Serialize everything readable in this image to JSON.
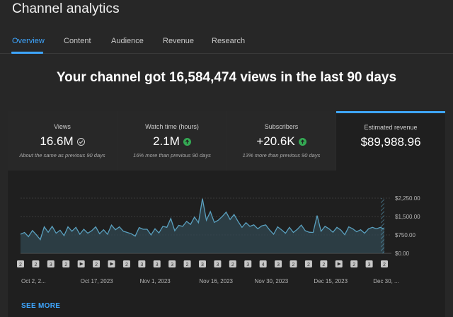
{
  "app": {
    "title": "Channel analytics"
  },
  "tabs": [
    {
      "label": "Overview",
      "active": true
    },
    {
      "label": "Content"
    },
    {
      "label": "Audience"
    },
    {
      "label": "Revenue"
    },
    {
      "label": "Research"
    }
  ],
  "headline": "Your channel got 16,584,474 views in the last 90 days",
  "metrics": [
    {
      "label": "Views",
      "value": "16.6M",
      "sub": "About the same as previous 90 days",
      "icon": "check-icon"
    },
    {
      "label": "Watch time (hours)",
      "value": "2.1M",
      "sub": "16% more than previous 90 days",
      "icon": "up-arrow-icon"
    },
    {
      "label": "Subscribers",
      "value": "+20.6K",
      "sub": "13% more than previous 90 days",
      "icon": "up-arrow-icon"
    },
    {
      "label": "Estimated revenue",
      "value": "$89,988.96",
      "sub": "",
      "icon": ""
    }
  ],
  "colors": {
    "accent": "#3ea6ff",
    "positive": "#34a853",
    "line": "#5aa0bf"
  },
  "chart_data": {
    "type": "area",
    "title": "",
    "xlabel": "",
    "ylabel": "",
    "ylim": [
      0,
      2250
    ],
    "yticks": [
      "$0.00",
      "$750.00",
      "$1,500.00",
      "$2,250.00"
    ],
    "xticks": [
      {
        "label": "Oct 2, 2...",
        "day": 0
      },
      {
        "label": "Oct 17, 2023",
        "day": 15
      },
      {
        "label": "Nov 1, 2023",
        "day": 30
      },
      {
        "label": "Nov 16, 2023",
        "day": 45
      },
      {
        "label": "Nov 30, 2023",
        "day": 59
      },
      {
        "label": "Dec 15, 2023",
        "day": 74
      },
      {
        "label": "Dec 30, ...",
        "day": 89
      }
    ],
    "values": [
      780,
      850,
      680,
      930,
      760,
      560,
      1080,
      860,
      1100,
      820,
      940,
      720,
      1080,
      900,
      1060,
      780,
      980,
      820,
      920,
      1080,
      800,
      960,
      780,
      1150,
      960,
      1080,
      900,
      850,
      800,
      700,
      1050,
      980,
      980,
      750,
      1000,
      830,
      1100,
      1060,
      1420,
      920,
      1140,
      1100,
      1300,
      1180,
      1480,
      1250,
      2230,
      1350,
      1700,
      1260,
      1350,
      1500,
      1680,
      1380,
      1580,
      1300,
      1060,
      1250,
      1100,
      1160,
      1000,
      1120,
      1160,
      950,
      780,
      1080,
      960,
      820,
      1060,
      850,
      980,
      1150,
      920,
      860,
      850,
      1540,
      900,
      1100,
      1000,
      860,
      1060,
      950,
      760,
      1080,
      1000,
      880,
      960,
      820,
      1000,
      1060,
      1000,
      1060,
      980
    ],
    "markers": [
      "2",
      "2",
      "3",
      "2",
      "play",
      "2",
      "play",
      "2",
      "3",
      "3",
      "3",
      "2",
      "3",
      "3",
      "2",
      "3",
      "4",
      "3",
      "2",
      "2",
      "2",
      "play",
      "2",
      "3",
      "2"
    ]
  },
  "footer": {
    "see_more": "SEE MORE"
  }
}
